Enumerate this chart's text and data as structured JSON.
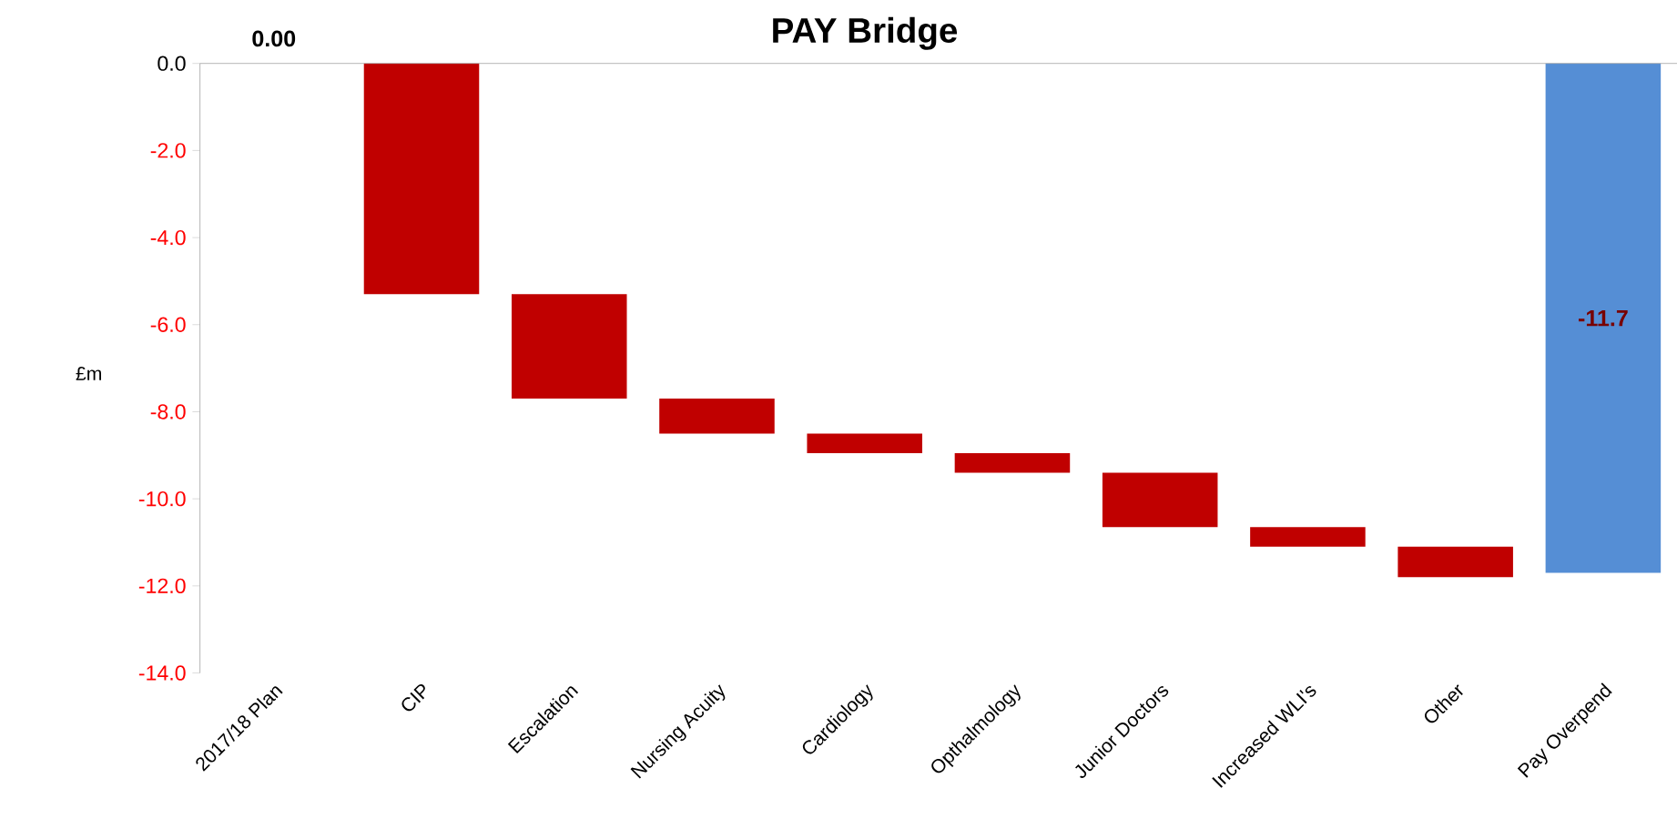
{
  "chart_data": {
    "type": "bar",
    "title": "PAY Bridge",
    "ylabel": "£m",
    "categories": [
      "2017/18 Plan",
      "CIP",
      "Escalation",
      "Nursing Acuity",
      "Cardiology",
      "Opthalmology",
      "Junior Doctors",
      "Increased WLI's",
      "Other",
      "Pay Overpend"
    ],
    "values": [
      0,
      -5.3,
      -2.4,
      -0.8,
      -0.45,
      -0.45,
      -1.25,
      -0.45,
      -0.7,
      -11.7
    ],
    "base": [
      null,
      0,
      -5.3,
      -7.7,
      -8.5,
      -8.95,
      -9.4,
      -10.65,
      -11.1,
      0
    ],
    "colors": [
      "#c00000",
      "#c00000",
      "#c00000",
      "#c00000",
      "#c00000",
      "#c00000",
      "#c00000",
      "#c00000",
      "#c00000",
      "#558ed5"
    ],
    "value_labels": [
      "0.00",
      null,
      null,
      null,
      null,
      null,
      null,
      null,
      null,
      "-11.7"
    ],
    "ylim": [
      -14,
      0
    ],
    "yticks": [
      {
        "value": 0,
        "label": "0.0"
      },
      {
        "value": -2,
        "label": "-2.0"
      },
      {
        "value": -4,
        "label": "-4.0"
      },
      {
        "value": -6,
        "label": "-6.0"
      },
      {
        "value": -8,
        "label": "-8.0"
      },
      {
        "value": -10,
        "label": "-10.0"
      },
      {
        "value": -12,
        "label": "-12.0"
      },
      {
        "value": -14,
        "label": "-14.0"
      }
    ]
  }
}
